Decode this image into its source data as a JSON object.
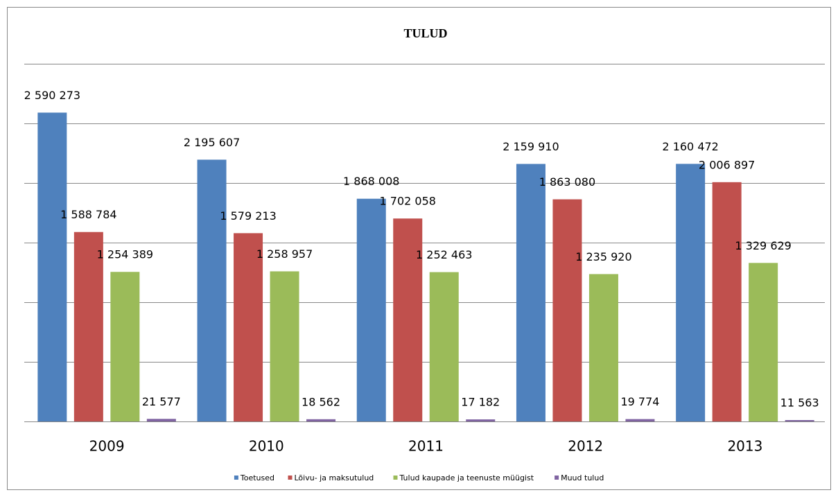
{
  "chart_data": {
    "type": "bar",
    "title": "TULUD",
    "categories": [
      "2009",
      "2010",
      "2011",
      "2012",
      "2013"
    ],
    "ylim": [
      0,
      3000000
    ],
    "yticks": [
      0,
      500000,
      1000000,
      1500000,
      2000000,
      2500000,
      3000000
    ],
    "grid": true,
    "legend": "bottom",
    "series": [
      {
        "name": "Toetused",
        "color": "#4f81bd",
        "values": [
          2590273,
          2195607,
          1868008,
          2159910,
          2160472
        ],
        "value_labels": [
          "2 590 273",
          "2 195 607",
          "1 868 008",
          "2 159 910",
          "2 160 472"
        ]
      },
      {
        "name": "Lõivu- ja maksutulud",
        "color": "#c0504d",
        "values": [
          1588784,
          1579213,
          1702058,
          1863080,
          2006897
        ],
        "value_labels": [
          "1 588 784",
          "1 579 213",
          "1 702 058",
          "1 863 080",
          "2 006 897"
        ]
      },
      {
        "name": "Tulud kaupade ja teenuste müügist",
        "color": "#9bbb59",
        "values": [
          1254389,
          1258957,
          1252463,
          1235920,
          1329629
        ],
        "value_labels": [
          "1 254 389",
          "1 258 957",
          "1 252 463",
          "1 235 920",
          "1 329 629"
        ]
      },
      {
        "name": "Muud tulud",
        "color": "#8064a2",
        "values": [
          21577,
          18562,
          17182,
          19774,
          11563
        ],
        "value_labels": [
          "21 577",
          "18 562",
          "17 182",
          "19 774",
          "11 563"
        ]
      }
    ]
  }
}
